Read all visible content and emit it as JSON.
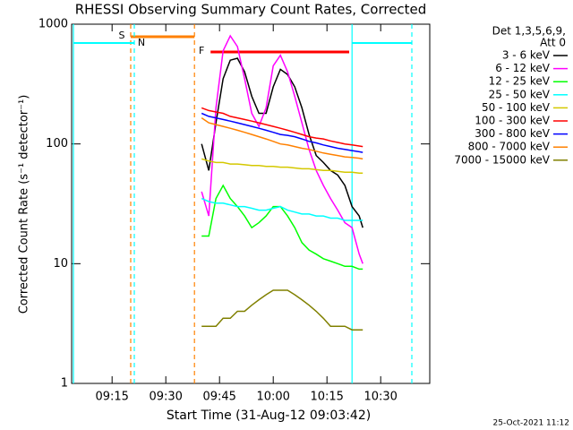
{
  "chart_data": {
    "type": "line",
    "title": "RHESSI Observing Summary Count Rates, Corrected",
    "xlabel": "Start Time (31-Aug-12 09:03:42)",
    "ylabel": "Corrected Count Rate (s⁻¹ detector⁻¹)",
    "footer": "25-Oct-2021 11:12",
    "legend_header": [
      "Det 1,3,5,6,9,",
      "Att 0"
    ],
    "log_y": true,
    "xlim": [
      3.7,
      103.7
    ],
    "ylim": [
      1,
      1000
    ],
    "yticks": [
      1,
      10,
      100,
      1000
    ],
    "xticks": [
      {
        "value": 15,
        "label": "09:15"
      },
      {
        "value": 30,
        "label": "09:30"
      },
      {
        "value": 45,
        "label": "09:45"
      },
      {
        "value": 60,
        "label": "10:00"
      },
      {
        "value": 75,
        "label": "10:15"
      },
      {
        "value": 90,
        "label": "10:30"
      }
    ],
    "x": [
      40,
      42,
      44,
      46,
      48,
      50,
      52,
      54,
      56,
      58,
      60,
      62,
      64,
      66,
      68,
      70,
      72,
      74,
      76,
      78,
      80,
      82,
      84,
      85
    ],
    "series": [
      {
        "name": "3 - 6 keV",
        "color": "#000000",
        "values": [
          100,
          60,
          150,
          350,
          500,
          520,
          400,
          250,
          180,
          180,
          300,
          420,
          380,
          300,
          200,
          120,
          80,
          70,
          60,
          55,
          45,
          30,
          25,
          20
        ]
      },
      {
        "name": "6 - 12 keV",
        "color": "#ff00ff",
        "values": [
          40,
          25,
          200,
          600,
          800,
          650,
          350,
          180,
          140,
          200,
          450,
          550,
          400,
          250,
          150,
          90,
          60,
          45,
          35,
          28,
          22,
          20,
          12,
          10
        ]
      },
      {
        "name": "12 - 25 keV",
        "color": "#00ff00",
        "values": [
          17,
          17,
          35,
          45,
          35,
          30,
          25,
          20,
          22,
          25,
          30,
          30,
          25,
          20,
          15,
          13,
          12,
          11,
          10.5,
          10,
          9.5,
          9.5,
          9,
          9
        ]
      },
      {
        "name": "25 - 50 keV",
        "color": "#00ffff",
        "values": [
          35,
          33,
          32,
          32,
          31,
          30,
          30,
          29,
          28,
          28,
          29,
          30,
          28,
          27,
          26,
          26,
          25,
          25,
          24,
          24,
          23,
          23,
          23,
          23
        ]
      },
      {
        "name": "50 - 100 keV",
        "color": "#d4c800",
        "values": [
          75,
          72,
          70,
          70,
          68,
          68,
          67,
          66,
          66,
          65,
          65,
          64,
          64,
          63,
          62,
          62,
          61,
          60,
          60,
          59,
          58,
          58,
          57,
          57
        ]
      },
      {
        "name": "100 - 300 keV",
        "color": "#ff0000",
        "values": [
          200,
          190,
          185,
          180,
          170,
          165,
          160,
          155,
          150,
          145,
          140,
          135,
          130,
          125,
          120,
          115,
          112,
          110,
          106,
          103,
          100,
          98,
          96,
          95
        ]
      },
      {
        "name": "300 - 800 keV",
        "color": "#0000ff",
        "values": [
          180,
          170,
          165,
          160,
          155,
          150,
          145,
          140,
          135,
          130,
          125,
          120,
          118,
          115,
          110,
          105,
          102,
          98,
          95,
          92,
          90,
          88,
          86,
          85
        ]
      },
      {
        "name": "800 - 7000 keV",
        "color": "#ff8000",
        "values": [
          165,
          150,
          145,
          140,
          135,
          130,
          125,
          120,
          115,
          110,
          105,
          100,
          98,
          95,
          92,
          90,
          87,
          84,
          82,
          80,
          78,
          77,
          76,
          75
        ]
      },
      {
        "name": "7000 - 15000 keV",
        "color": "#808000",
        "values": [
          3,
          3,
          3,
          3.5,
          3.5,
          4,
          4,
          4.5,
          5,
          5.5,
          6,
          6,
          6,
          5.5,
          5,
          4.5,
          4,
          3.5,
          3,
          3,
          3,
          2.8,
          2.8,
          2.8
        ]
      }
    ],
    "flags": [
      {
        "label": "S",
        "color": "#ff8000",
        "intervals": [
          [
            20.2,
            38
          ]
        ]
      },
      {
        "label": "N",
        "color": "#00ffff",
        "intervals": [
          [
            4.2,
            21.2
          ],
          [
            82,
            98.7
          ]
        ]
      },
      {
        "label": "F",
        "color": "#ff0000",
        "intervals": [
          [
            42.5,
            81.2
          ]
        ]
      }
    ]
  }
}
